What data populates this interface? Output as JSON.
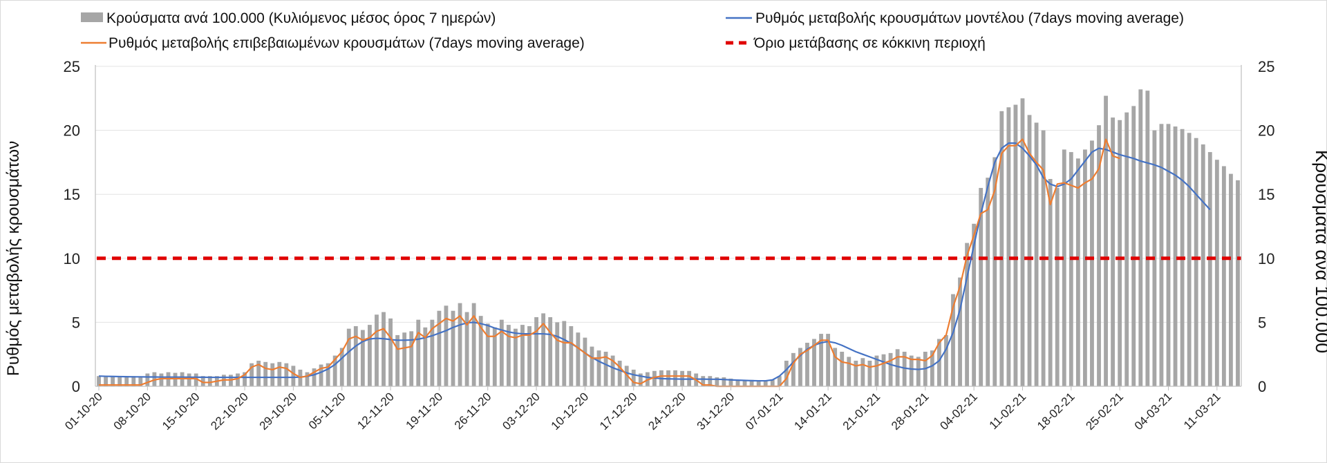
{
  "chart_data": {
    "type": "bar",
    "legend": {
      "bars": "Κρούσματα ανά 100.000 (Κυλιόμενος μέσος όρος 7 ημερών)",
      "model": "Ρυθμός μεταβολής κρουσμάτων μοντέλου (7days moving average)",
      "confirmed": "Ρυθμός μεταβολής επιβεβαιωμένων κρουσμάτων (7days moving average)",
      "threshold": "Όριο μετάβασης σε κόκκινη περιοχή"
    },
    "ylabel_left": "Ρυθμός μεταβολής κρουσμάτων",
    "ylabel_right": "Κρούσματα ανά 100.000",
    "ylim": [
      0,
      25
    ],
    "yticks": [
      "0",
      "5",
      "10",
      "15",
      "20",
      "25"
    ],
    "threshold": 10,
    "x_labels": [
      "01-10-20",
      "08-10-20",
      "15-10-20",
      "22-10-20",
      "29-10-20",
      "05-11-20",
      "12-11-20",
      "19-11-20",
      "26-11-20",
      "03-12-20",
      "10-12-20",
      "17-12-20",
      "24-12-20",
      "31-12-20",
      "07-01-21",
      "14-01-21",
      "21-01-21",
      "28-01-21",
      "04-02-21",
      "11-02-21",
      "18-02-21",
      "25-02-21",
      "04-03-21",
      "11-03-21"
    ],
    "bars": [
      0.8,
      0.75,
      0.8,
      0.8,
      0.7,
      0.8,
      0.7,
      1.0,
      1.1,
      1.0,
      1.1,
      1.05,
      1.1,
      1.0,
      1.0,
      0.8,
      0.8,
      0.8,
      0.9,
      0.9,
      1.0,
      1.1,
      1.8,
      2.0,
      1.9,
      1.8,
      1.9,
      1.8,
      1.6,
      1.3,
      1.1,
      1.4,
      1.7,
      1.8,
      2.4,
      3.0,
      4.5,
      4.7,
      4.4,
      4.8,
      5.6,
      5.8,
      5.3,
      4.0,
      4.2,
      4.3,
      5.2,
      4.6,
      5.2,
      5.9,
      6.3,
      5.9,
      6.5,
      5.8,
      6.5,
      5.5,
      4.9,
      4.6,
      5.2,
      4.8,
      4.5,
      4.8,
      4.7,
      5.4,
      5.7,
      5.4,
      5.0,
      5.1,
      4.7,
      4.2,
      3.8,
      3.1,
      2.8,
      2.7,
      2.4,
      2.0,
      1.6,
      1.3,
      1.0,
      1.1,
      1.2,
      1.25,
      1.25,
      1.25,
      1.2,
      1.2,
      1.0,
      0.8,
      0.8,
      0.7,
      0.7,
      0.6,
      0.5,
      0.5,
      0.5,
      0.45,
      0.45,
      0.5,
      0.8,
      2.0,
      2.6,
      3.0,
      3.4,
      3.7,
      4.1,
      4.1,
      3.0,
      2.7,
      2.3,
      2.0,
      2.2,
      2.0,
      2.4,
      2.5,
      2.6,
      2.9,
      2.7,
      2.4,
      2.3,
      2.7,
      2.8,
      3.7,
      4.0,
      7.2,
      8.5,
      11.2,
      12.7,
      15.5,
      16.3,
      17.9,
      21.5,
      21.8,
      22.0,
      22.5,
      21.2,
      20.6,
      20.0,
      16.2,
      15.5,
      18.5,
      18.3,
      17.8,
      18.5,
      19.2,
      20.4,
      22.7,
      21.0,
      20.8,
      21.4,
      21.9,
      23.2,
      23.1,
      20.0,
      20.5,
      20.5,
      20.3,
      20.1,
      19.8,
      19.4,
      18.9,
      18.3,
      17.7,
      17.2,
      16.6,
      16.1
    ],
    "model_line": [
      0.8,
      0.78,
      0.77,
      0.76,
      0.75,
      0.74,
      0.74,
      0.73,
      0.73,
      0.72,
      0.72,
      0.72,
      0.72,
      0.71,
      0.71,
      0.71,
      0.7,
      0.7,
      0.7,
      0.7,
      0.7,
      0.7,
      0.7,
      0.7,
      0.7,
      0.7,
      0.7,
      0.7,
      0.7,
      0.72,
      0.78,
      0.9,
      1.1,
      1.35,
      1.7,
      2.2,
      2.7,
      3.15,
      3.5,
      3.7,
      3.75,
      3.72,
      3.65,
      3.6,
      3.6,
      3.62,
      3.68,
      3.8,
      3.95,
      4.15,
      4.35,
      4.6,
      4.8,
      4.95,
      5.0,
      4.9,
      4.75,
      4.55,
      4.4,
      4.25,
      4.15,
      4.1,
      4.1,
      4.1,
      4.1,
      4.05,
      3.9,
      3.65,
      3.35,
      3.0,
      2.6,
      2.25,
      1.95,
      1.7,
      1.45,
      1.25,
      1.05,
      0.9,
      0.8,
      0.7,
      0.65,
      0.6,
      0.58,
      0.57,
      0.56,
      0.56,
      0.56,
      0.56,
      0.55,
      0.55,
      0.53,
      0.5,
      0.48,
      0.46,
      0.44,
      0.43,
      0.43,
      0.5,
      0.8,
      1.3,
      1.9,
      2.4,
      2.9,
      3.2,
      3.4,
      3.5,
      3.4,
      3.2,
      2.95,
      2.7,
      2.5,
      2.3,
      2.1,
      1.9,
      1.7,
      1.55,
      1.42,
      1.35,
      1.32,
      1.38,
      1.6,
      2.0,
      2.9,
      4.2,
      6.0,
      8.5,
      11.0,
      13.5,
      15.6,
      17.5,
      18.6,
      19.0,
      19.0,
      18.6,
      18.0,
      17.3,
      16.3,
      15.8,
      15.6,
      15.8,
      16.2,
      16.9,
      17.6,
      18.3,
      18.6,
      18.5,
      18.3,
      18.1,
      17.95,
      17.8,
      17.6,
      17.45,
      17.3,
      17.1,
      16.8,
      16.5,
      16.1,
      15.6,
      15.0,
      14.4,
      13.8
    ],
    "confirmed_line": [
      0.1,
      0.1,
      0.1,
      0.1,
      0.1,
      0.1,
      0.1,
      0.3,
      0.5,
      0.6,
      0.6,
      0.6,
      0.6,
      0.6,
      0.6,
      0.3,
      0.3,
      0.4,
      0.5,
      0.5,
      0.6,
      0.9,
      1.5,
      1.7,
      1.4,
      1.3,
      1.5,
      1.4,
      1.0,
      0.7,
      0.8,
      1.1,
      1.4,
      1.5,
      2.1,
      2.7,
      3.7,
      3.9,
      3.6,
      3.8,
      4.3,
      4.5,
      3.8,
      2.9,
      3.0,
      3.1,
      4.2,
      3.8,
      4.5,
      4.9,
      5.3,
      5.1,
      5.5,
      4.8,
      5.5,
      4.6,
      3.9,
      3.9,
      4.3,
      3.9,
      3.8,
      4.0,
      4.0,
      4.3,
      4.9,
      4.2,
      3.6,
      3.4,
      3.4,
      3.0,
      2.6,
      2.2,
      2.2,
      2.3,
      2.0,
      1.5,
      0.9,
      0.3,
      0.2,
      0.5,
      0.7,
      0.8,
      0.8,
      0.8,
      0.8,
      0.8,
      0.5,
      0.1,
      0.1,
      0.0,
      0.0,
      0.0,
      0.0,
      0.0,
      0.0,
      0.0,
      0.0,
      0.0,
      0.0,
      0.6,
      1.8,
      2.5,
      2.8,
      3.2,
      3.6,
      3.6,
      2.3,
      1.9,
      1.8,
      1.6,
      1.7,
      1.5,
      1.6,
      1.8,
      2.0,
      2.3,
      2.3,
      2.1,
      2.1,
      2.0,
      2.4,
      3.4,
      4.0,
      6.2,
      7.8,
      10.2,
      11.8,
      13.5,
      13.8,
      15.3,
      18.2,
      18.8,
      18.8,
      19.3,
      18.2,
      17.5,
      16.9,
      14.2,
      15.8,
      15.9,
      15.7,
      15.5,
      15.9,
      16.2,
      17.0,
      19.3,
      18.0,
      17.8
    ]
  }
}
